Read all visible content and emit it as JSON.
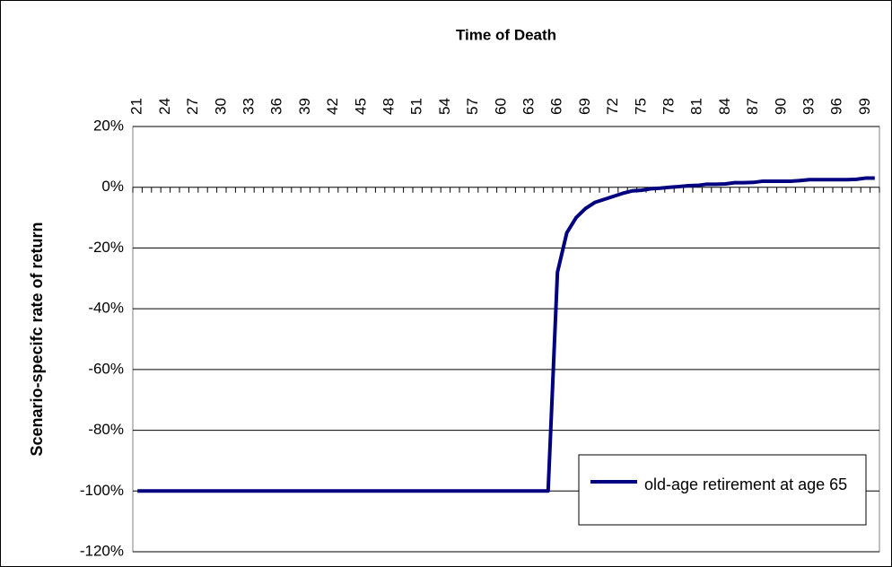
{
  "chart_data": {
    "type": "line",
    "title": "Time of Death",
    "y_label": "Scenario-specifc rate of return",
    "categories": [
      "21",
      null,
      null,
      "24",
      null,
      null,
      "27",
      null,
      null,
      "30",
      null,
      null,
      "33",
      null,
      null,
      "36",
      null,
      null,
      "39",
      null,
      null,
      "42",
      null,
      null,
      "45",
      null,
      null,
      "48",
      null,
      null,
      "51",
      null,
      null,
      "54",
      null,
      null,
      "57",
      null,
      null,
      "60",
      null,
      null,
      "63",
      null,
      null,
      "66",
      null,
      null,
      "69",
      null,
      null,
      "72",
      null,
      null,
      "75",
      null,
      null,
      "78",
      null,
      null,
      "81",
      null,
      null,
      "84",
      null,
      null,
      "87",
      null,
      null,
      "90",
      null,
      null,
      "93",
      null,
      null,
      "96",
      null,
      null,
      "99",
      null
    ],
    "series": [
      {
        "name": "old-age retirement at age 65",
        "color": "#000080",
        "values": [
          -100,
          -100,
          -100,
          -100,
          -100,
          -100,
          -100,
          -100,
          -100,
          -100,
          -100,
          -100,
          -100,
          -100,
          -100,
          -100,
          -100,
          -100,
          -100,
          -100,
          -100,
          -100,
          -100,
          -100,
          -100,
          -100,
          -100,
          -100,
          -100,
          -100,
          -100,
          -100,
          -100,
          -100,
          -100,
          -100,
          -100,
          -100,
          -100,
          -100,
          -100,
          -100,
          -100,
          -100,
          -100,
          -28,
          -15,
          -10,
          -7,
          -5,
          -4,
          -3,
          -2,
          -1.2,
          -1,
          -0.5,
          -0.3,
          0,
          0.2,
          0.5,
          0.6,
          1,
          1,
          1.1,
          1.5,
          1.5,
          1.6,
          2,
          2,
          2,
          2,
          2.2,
          2.5,
          2.5,
          2.5,
          2.5,
          2.5,
          2.6,
          3,
          3
        ]
      }
    ],
    "ylim": [
      -120,
      20
    ],
    "yticks": [
      {
        "value": -120,
        "label": "-120%"
      },
      {
        "value": -100,
        "label": "-100%"
      },
      {
        "value": -80,
        "label": "-80%"
      },
      {
        "value": -60,
        "label": "-60%"
      },
      {
        "value": -40,
        "label": "-40%"
      },
      {
        "value": -20,
        "label": "-20%"
      },
      {
        "value": 0,
        "label": "0%"
      },
      {
        "value": 20,
        "label": "20%"
      }
    ],
    "grid": true
  }
}
